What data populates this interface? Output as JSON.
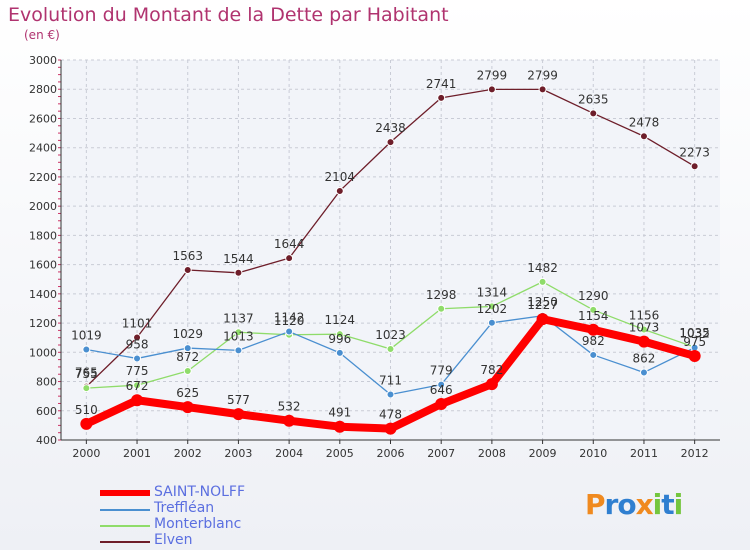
{
  "chart_data": {
    "type": "line",
    "title": "Evolution du Montant de la Dette par Habitant",
    "subtitle": "(en €)",
    "x": [
      "2000",
      "2001",
      "2002",
      "2003",
      "2004",
      "2005",
      "2006",
      "2007",
      "2008",
      "2009",
      "2010",
      "2011",
      "2012"
    ],
    "ylim": [
      400,
      3000
    ],
    "yticks": [
      400,
      600,
      800,
      1000,
      1200,
      1400,
      1600,
      1800,
      2000,
      2200,
      2400,
      2600,
      2800,
      3000
    ],
    "grid": true,
    "legend_position": "bottom-left",
    "series": [
      {
        "name": "SAINT-NOLFF",
        "color": "#ff0000",
        "values": [
          510,
          672,
          625,
          577,
          532,
          491,
          478,
          646,
          782,
          1227,
          1154,
          1073,
          975
        ]
      },
      {
        "name": "Trefflean",
        "display_name": "Treffléan",
        "color": "#4a8fd0",
        "values": [
          1019,
          958,
          1029,
          1013,
          1142,
          996,
          711,
          779,
          1202,
          1250,
          982,
          862,
          1032
        ]
      },
      {
        "name": "Monterblanc",
        "color": "#8fdc6a",
        "values": [
          755,
          775,
          872,
          1137,
          1120,
          1124,
          1023,
          1298,
          1314,
          1482,
          1290,
          1156,
          1035
        ]
      },
      {
        "name": "Elven",
        "color": "#6e1e2a",
        "values": [
          765,
          1101,
          1563,
          1544,
          1644,
          2104,
          2438,
          2741,
          2799,
          2799,
          2635,
          2478,
          2273
        ]
      }
    ]
  },
  "branding": {
    "logo_text": "Proxiti",
    "letters": [
      {
        "ch": "P",
        "color": "#f08a1f"
      },
      {
        "ch": "r",
        "color": "#2f7fd0"
      },
      {
        "ch": "o",
        "color": "#2f7fd0"
      },
      {
        "ch": "x",
        "color": "#f08a1f"
      },
      {
        "ch": "i",
        "color": "#74c63e"
      },
      {
        "ch": "t",
        "color": "#2f7fd0"
      },
      {
        "ch": "i",
        "color": "#74c63e"
      }
    ]
  }
}
